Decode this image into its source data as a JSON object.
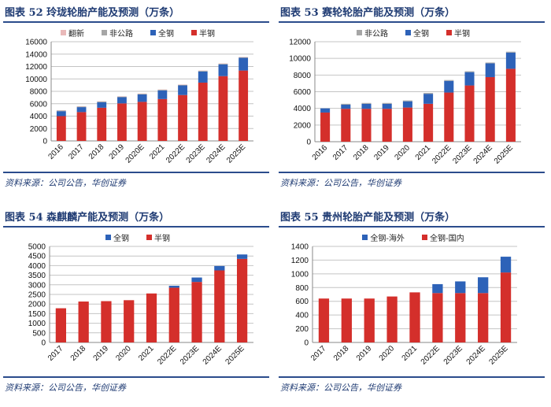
{
  "source_text": "资料来源：公司公告，华创证券",
  "chart_data": [
    {
      "type": "bar",
      "stacked": true,
      "title": "图表 52  玲珑轮胎产能及预测（万条）",
      "categories": [
        "2016",
        "2017",
        "2018",
        "2019",
        "2020E",
        "2021",
        "2022E",
        "2023E",
        "2024E",
        "2025E"
      ],
      "ylim": [
        0,
        16000
      ],
      "yticks": [
        0,
        2000,
        4000,
        6000,
        8000,
        10000,
        12000,
        14000,
        16000
      ],
      "legend_order": [
        "翻新",
        "非公路",
        "全钢",
        "半钢"
      ],
      "series": [
        {
          "name": "半钢",
          "color": "#d42f2b",
          "values": [
            4000,
            4650,
            5350,
            6050,
            6300,
            6750,
            7400,
            9400,
            10450,
            11350
          ]
        },
        {
          "name": "全钢",
          "color": "#2d62b8",
          "values": [
            800,
            800,
            900,
            1000,
            1200,
            1400,
            1550,
            1800,
            1900,
            2050
          ]
        },
        {
          "name": "非公路",
          "color": "#a6a6a6",
          "values": [
            100,
            100,
            100,
            100,
            100,
            100,
            100,
            100,
            100,
            100
          ]
        },
        {
          "name": "翻新",
          "color": "#e9b9b9",
          "values": [
            50,
            50,
            50,
            50,
            50,
            50,
            50,
            50,
            50,
            50
          ]
        }
      ]
    },
    {
      "type": "bar",
      "stacked": true,
      "title": "图表 53  赛轮轮胎产能及预测（万条）",
      "categories": [
        "2016",
        "2017",
        "2018",
        "2019",
        "2020",
        "2021",
        "2022E",
        "2023E",
        "2024E",
        "2025E"
      ],
      "ylim": [
        0,
        12000
      ],
      "yticks": [
        0,
        2000,
        4000,
        6000,
        8000,
        10000,
        12000
      ],
      "legend_order": [
        "非公路",
        "全钢",
        "半钢"
      ],
      "series": [
        {
          "name": "半钢",
          "color": "#d42f2b",
          "values": [
            3500,
            3950,
            3950,
            3950,
            4100,
            4550,
            5900,
            6750,
            7750,
            8750
          ]
        },
        {
          "name": "全钢",
          "color": "#2d62b8",
          "values": [
            500,
            500,
            600,
            600,
            750,
            1200,
            1400,
            1600,
            1650,
            1950
          ]
        },
        {
          "name": "非公路",
          "color": "#a6a6a6",
          "values": [
            0,
            100,
            100,
            100,
            100,
            100,
            100,
            100,
            100,
            100
          ]
        }
      ]
    },
    {
      "type": "bar",
      "stacked": true,
      "title": "图表 54  森麒麟产能及预测（万条）",
      "categories": [
        "2017",
        "2018",
        "2019",
        "2020",
        "2021",
        "2022E",
        "2023E",
        "2024E",
        "2025E"
      ],
      "ylim": [
        0,
        5000
      ],
      "yticks": [
        0,
        500,
        1000,
        1500,
        2000,
        2500,
        3000,
        3500,
        4000,
        4500,
        5000
      ],
      "legend_order": [
        "全钢",
        "半钢"
      ],
      "series": [
        {
          "name": "半钢",
          "color": "#d42f2b",
          "values": [
            1780,
            2130,
            2150,
            2200,
            2550,
            2850,
            3150,
            3750,
            4350
          ]
        },
        {
          "name": "全钢",
          "color": "#2d62b8",
          "values": [
            0,
            0,
            0,
            0,
            0,
            100,
            230,
            230,
            230
          ]
        }
      ]
    },
    {
      "type": "bar",
      "stacked": true,
      "title": "图表 55  贵州轮胎产能及预测（万条）",
      "categories": [
        "2017",
        "2018",
        "2019",
        "2020",
        "2021",
        "2022E",
        "2023E",
        "2024E",
        "2025E"
      ],
      "ylim": [
        0,
        1400
      ],
      "yticks": [
        0,
        200,
        400,
        600,
        800,
        1000,
        1200,
        1400
      ],
      "legend_order": [
        "全钢-海外",
        "全钢-国内"
      ],
      "series": [
        {
          "name": "全钢-国内",
          "color": "#d42f2b",
          "values": [
            640,
            640,
            640,
            670,
            730,
            720,
            720,
            720,
            1020
          ]
        },
        {
          "name": "全钢-海外",
          "color": "#2d62b8",
          "values": [
            0,
            0,
            0,
            0,
            0,
            130,
            170,
            230,
            230
          ]
        }
      ]
    }
  ]
}
